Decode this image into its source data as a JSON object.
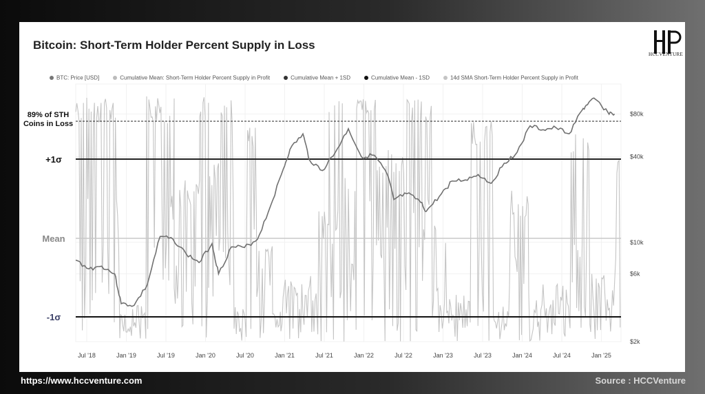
{
  "footer": {
    "url": "https://www.hccventure.com",
    "source": "Source : HCCVenture"
  },
  "logo": {
    "text": "HCCVENTURE"
  },
  "chart_data": {
    "type": "line",
    "title": "Bitcoin: Short-Term Holder Percent Supply in Loss",
    "legend": [
      {
        "name": "BTC: Price [USD]",
        "color": "#777777"
      },
      {
        "name": "Cumulative Mean: Short-Term Holder Percent Supply in Profit",
        "color": "#bbbbbb"
      },
      {
        "name": "Cumulative Mean + 1SD",
        "color": "#333333"
      },
      {
        "name": "Cumulative Mean - 1SD",
        "color": "#111111"
      },
      {
        "name": "14d SMA Short-Term Holder Percent Supply in Profit",
        "color": "#c4c4c4"
      }
    ],
    "legend_placement": "top",
    "grid": true,
    "x_ticks": [
      "Jul '18",
      "Jan '19",
      "Jul '19",
      "Jan '20",
      "Jul '20",
      "Jan '21",
      "Jul '21",
      "Jan '22",
      "Jul '22",
      "Jan '23",
      "Jul '23",
      "Jan '24",
      "Jul '24",
      "Jan '25"
    ],
    "x_range": [
      "2018-05",
      "2025-05"
    ],
    "y_right_scale": "log",
    "y_right_ticks": [
      {
        "label": "$80k",
        "value": 80000
      },
      {
        "label": "$40k",
        "value": 40000
      },
      {
        "label": "$10k",
        "value": 10000
      },
      {
        "label": "$6k",
        "value": 6000
      },
      {
        "label": "$2k",
        "value": 2000
      }
    ],
    "y_right_range": [
      2000,
      130000
    ],
    "left_annotations": [
      {
        "label": "89% of STH Coins in Loss",
        "line": "dashed"
      },
      {
        "label": "+1σ",
        "line": "solid"
      },
      {
        "label": "Mean",
        "line": "solid-light"
      },
      {
        "label": "-1σ",
        "line": "solid"
      }
    ],
    "btc_price": {
      "name": "BTC: Price [USD]",
      "x": [
        "2018-05",
        "2018-07",
        "2018-09",
        "2018-11",
        "2018-12",
        "2019-02",
        "2019-04",
        "2019-06",
        "2019-08",
        "2019-10",
        "2019-12",
        "2020-02",
        "2020-03",
        "2020-05",
        "2020-07",
        "2020-09",
        "2020-11",
        "2021-01",
        "2021-02",
        "2021-04",
        "2021-05",
        "2021-07",
        "2021-09",
        "2021-11",
        "2022-01",
        "2022-03",
        "2022-05",
        "2022-06",
        "2022-08",
        "2022-10",
        "2022-11",
        "2023-01",
        "2023-03",
        "2023-05",
        "2023-07",
        "2023-09",
        "2023-11",
        "2024-01",
        "2024-03",
        "2024-05",
        "2024-07",
        "2024-09",
        "2024-11",
        "2024-12",
        "2025-01",
        "2025-03",
        "2025-04"
      ],
      "values": [
        7500,
        6500,
        6800,
        6000,
        3700,
        3600,
        5000,
        11000,
        10500,
        8300,
        7200,
        9800,
        6000,
        9300,
        9200,
        10500,
        18000,
        33000,
        45000,
        58000,
        38000,
        32000,
        43000,
        63000,
        40000,
        41000,
        30000,
        20000,
        22000,
        19500,
        16500,
        21000,
        27000,
        27500,
        30000,
        26000,
        36000,
        43000,
        66000,
        62000,
        64000,
        58000,
        85000,
        96000,
        102000,
        82000,
        80000
      ]
    },
    "sth_supply_sma": {
      "name": "14d SMA Short-Term Holder Percent Supply in Profit",
      "note": "high-frequency oscillation between -1σ (bottom) and the 89% dashed level (top); shown as gray band"
    }
  }
}
